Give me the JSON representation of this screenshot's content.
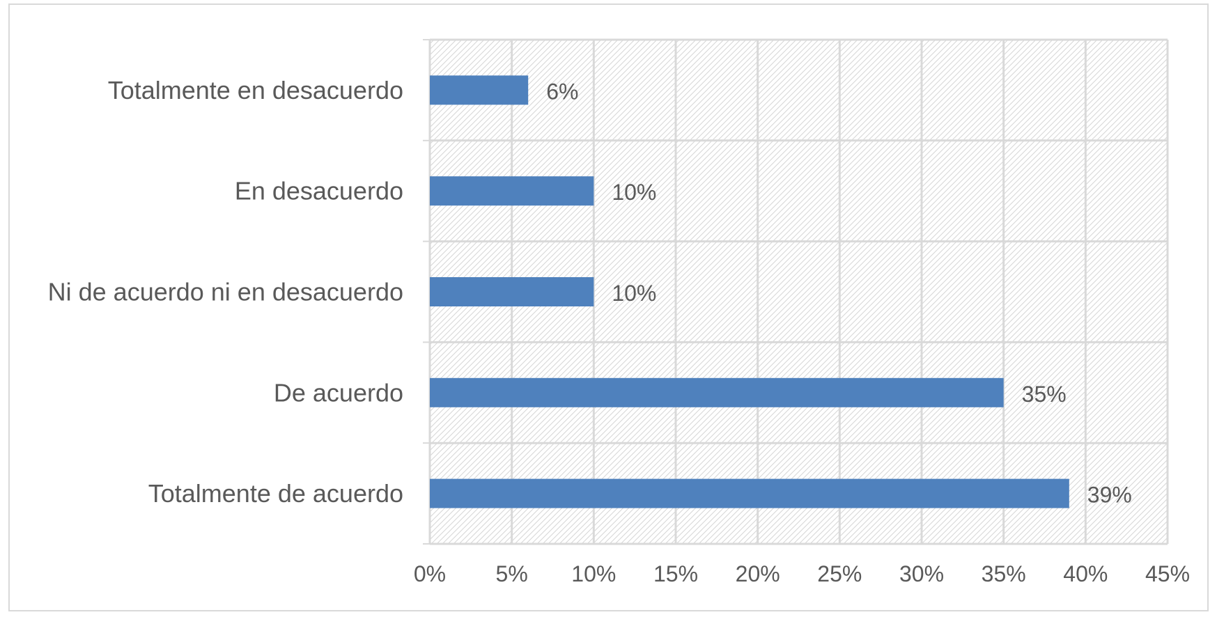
{
  "chart_data": {
    "type": "bar",
    "orientation": "horizontal",
    "categories": [
      "Totalmente en desacuerdo",
      "En desacuerdo",
      "Ni de acuerdo ni en desacuerdo",
      "De acuerdo",
      "Totalmente de acuerdo"
    ],
    "values": [
      6,
      10,
      10,
      35,
      39
    ],
    "data_labels": [
      "6%",
      "10%",
      "10%",
      "35%",
      "39%"
    ],
    "xlim": [
      0,
      45
    ],
    "x_ticks": [
      "0%",
      "5%",
      "10%",
      "15%",
      "20%",
      "25%",
      "30%",
      "35%",
      "40%",
      "45%"
    ],
    "title": "",
    "xlabel": "",
    "ylabel": "",
    "grid": true,
    "legend": "none",
    "bar_color": "#4f81bd",
    "grid_color": "#d9d9d9",
    "background_pattern": "diagonal-hatch"
  }
}
